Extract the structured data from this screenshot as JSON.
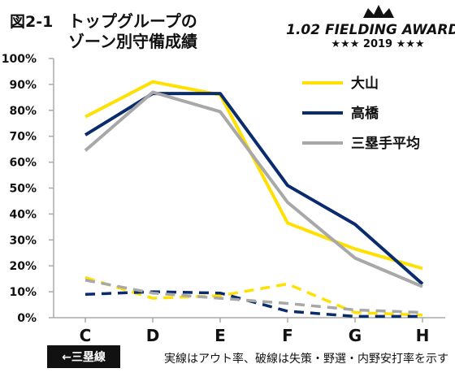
{
  "header": {
    "figure_number": "図2-1",
    "title_line1": "トップグループの",
    "title_line2": "ゾーン別守備成績"
  },
  "logo": {
    "main": "1.02 FIELDING AWARDS",
    "sub": "★★★ 2019 ★★★"
  },
  "footer": {
    "badge": "←三塁線",
    "note": "実線はアウト率、破線は失策・野選・内野安打率を示す"
  },
  "chart_data": {
    "type": "line",
    "categories": [
      "C",
      "D",
      "E",
      "F",
      "G",
      "H"
    ],
    "ylim": [
      0,
      100
    ],
    "y_ticks": [
      0,
      10,
      20,
      30,
      40,
      50,
      60,
      70,
      80,
      90,
      100
    ],
    "y_tick_format": "%",
    "legend_position": "top-right",
    "grid": false,
    "series": [
      {
        "name": "大山",
        "color": "#ffe000",
        "style": "solid",
        "values": [
          77.5,
          91,
          86,
          36.5,
          26.5,
          19
        ]
      },
      {
        "name": "高橋",
        "color": "#0a2c6e",
        "style": "solid",
        "values": [
          70.5,
          86.5,
          86.5,
          51,
          36,
          13
        ]
      },
      {
        "name": "三塁手平均",
        "color": "#a8a8a8",
        "style": "solid",
        "values": [
          64.5,
          87,
          79.5,
          44.5,
          23,
          12
        ]
      },
      {
        "name": "",
        "color": "#ffe000",
        "style": "dashed",
        "values": [
          15.5,
          7.5,
          8.5,
          13,
          2,
          1
        ]
      },
      {
        "name": "",
        "color": "#0a2c6e",
        "style": "dashed",
        "values": [
          9,
          10,
          9.5,
          2.5,
          0.5,
          0.5
        ]
      },
      {
        "name": "",
        "color": "#a8a8a8",
        "style": "dashed",
        "values": [
          14.5,
          9.5,
          7.5,
          5.5,
          3,
          2
        ]
      }
    ]
  }
}
